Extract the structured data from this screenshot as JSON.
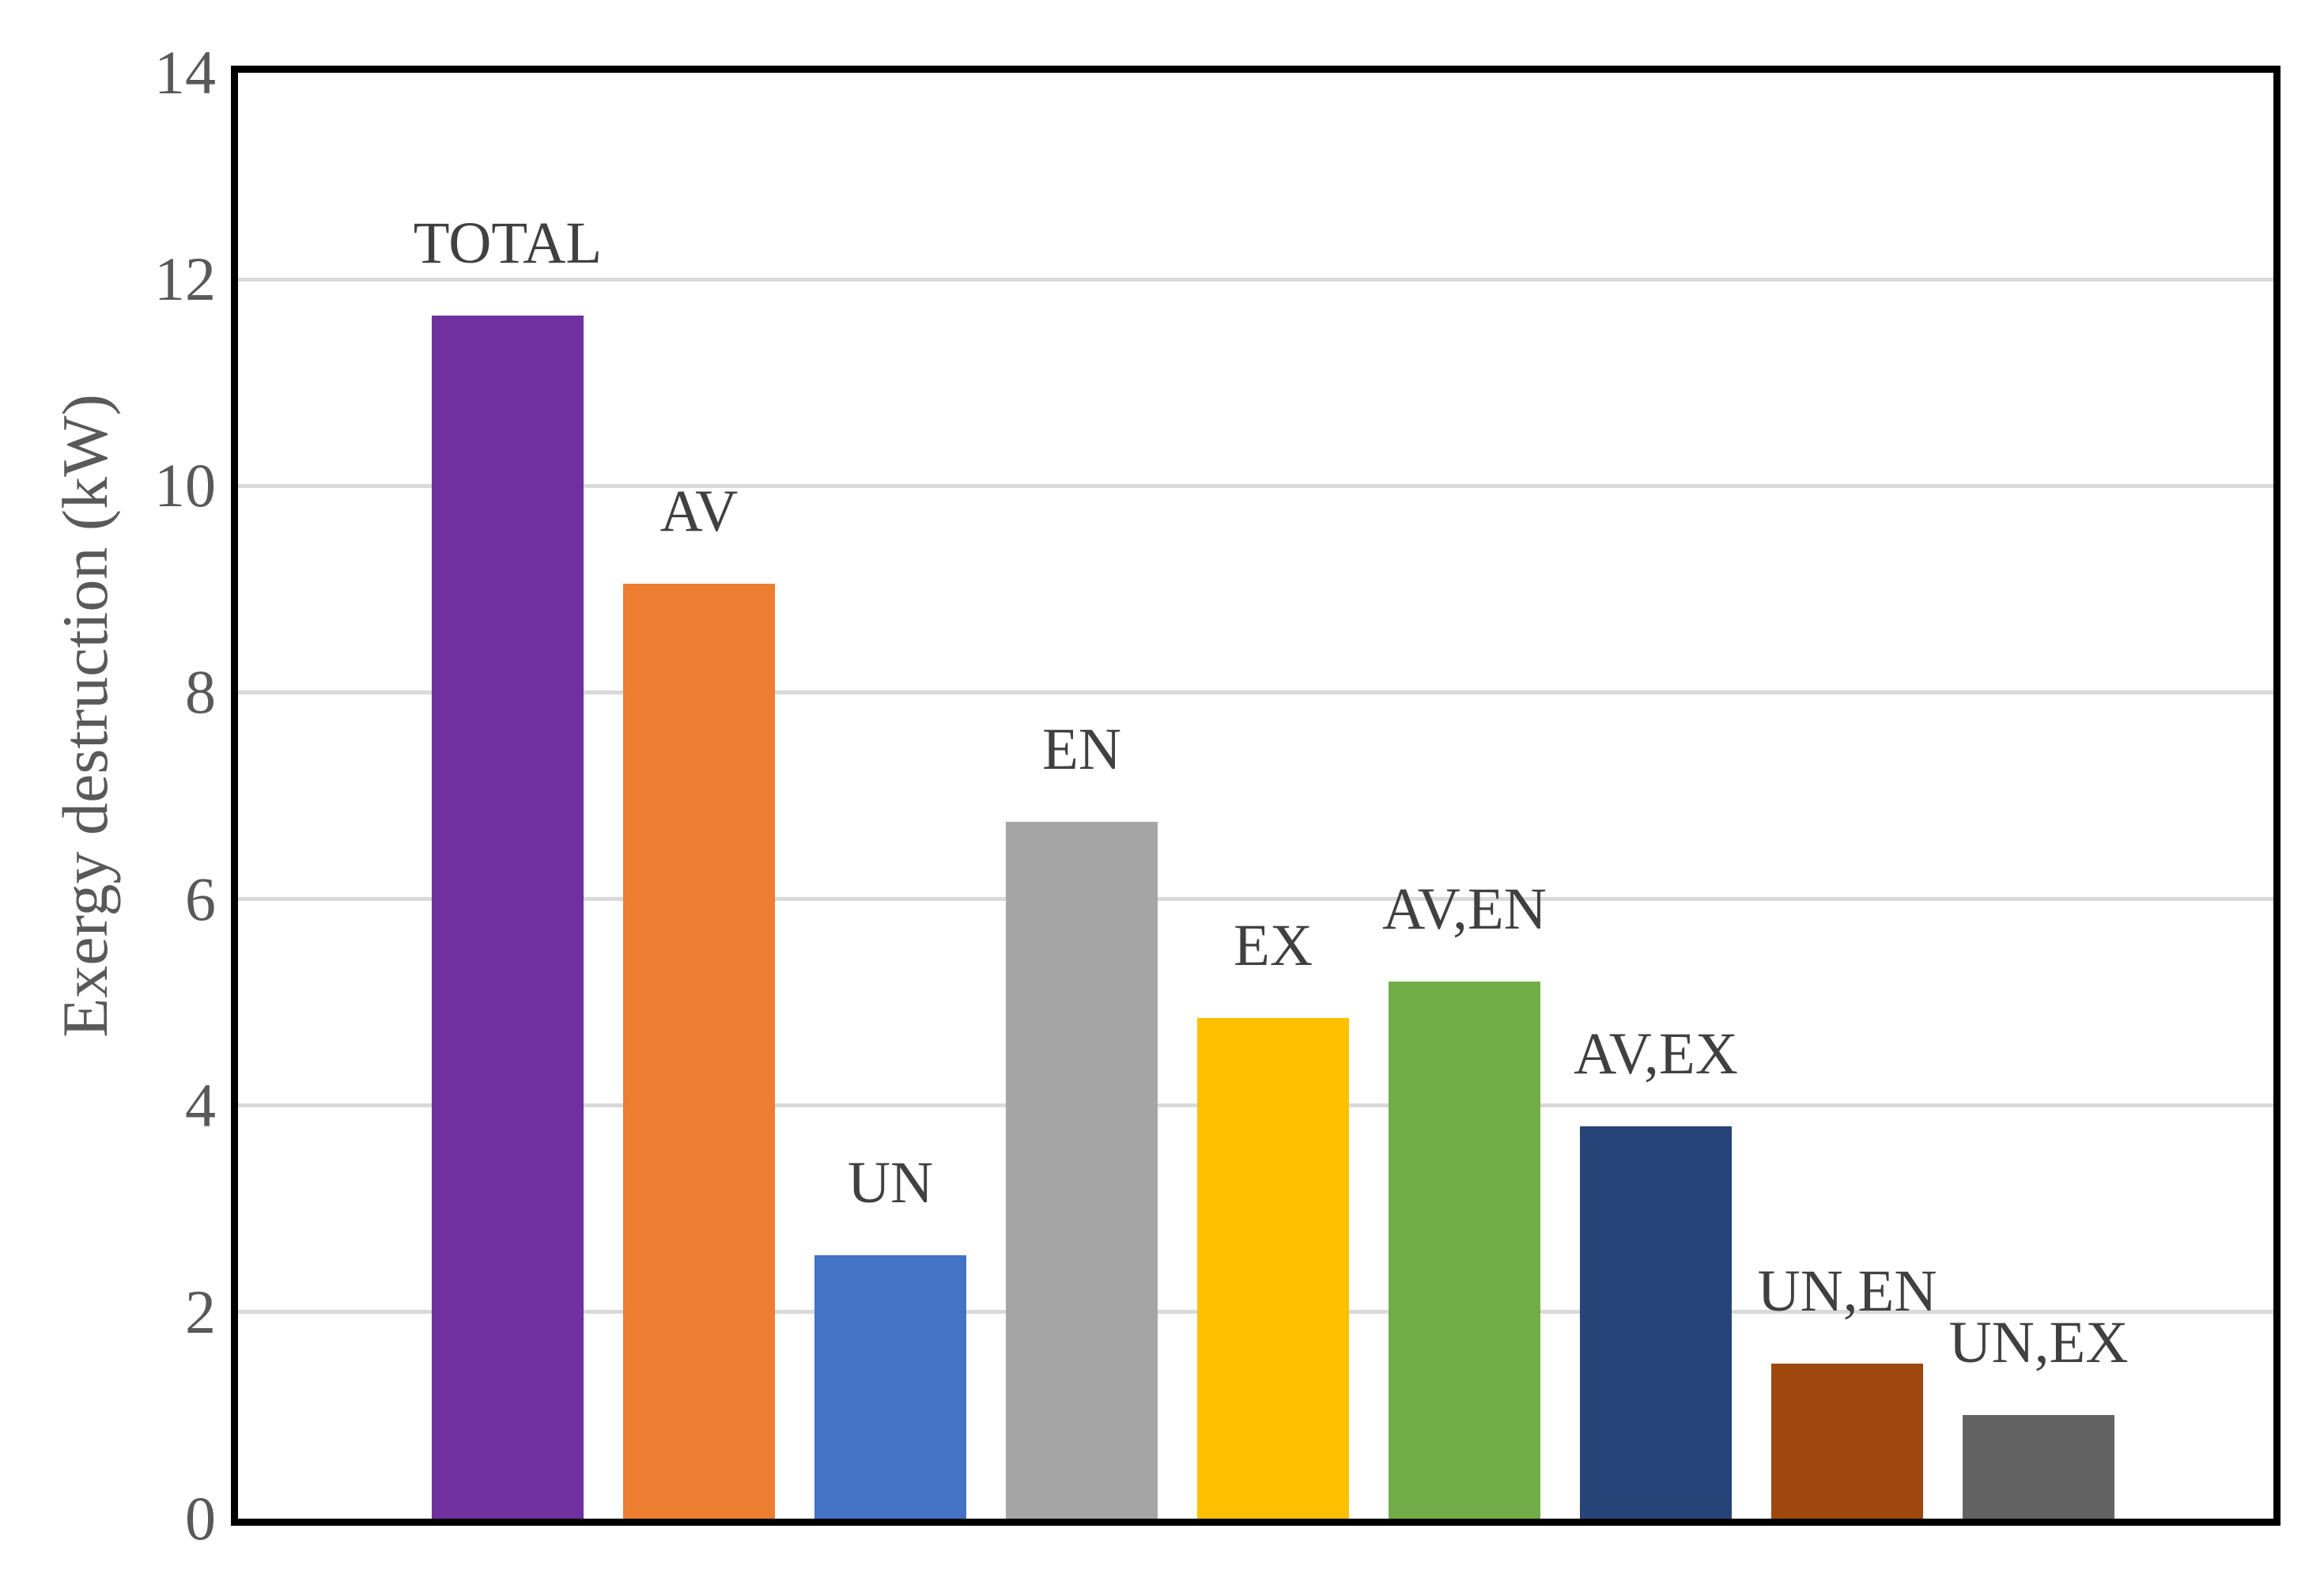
{
  "chart_data": {
    "type": "bar",
    "title": "",
    "xlabel": "",
    "ylabel": "Exergy destruction (kW)",
    "ylim": [
      0,
      14
    ],
    "yticks": [
      0,
      2,
      4,
      6,
      8,
      10,
      12,
      14
    ],
    "grid": "horizontal-gridlines-at-even-values",
    "legend_position": "none",
    "bar_label_position": "above-bar-outside-end",
    "categories": [
      "TOTAL",
      "AV",
      "UN",
      "EN",
      "EX",
      "AV,EN",
      "AV,EX",
      "UN,EN",
      "UN,EX"
    ],
    "values": [
      11.65,
      9.05,
      2.55,
      6.75,
      4.85,
      5.2,
      3.8,
      1.5,
      1.0
    ],
    "bar_colors": [
      "#7030A0",
      "#ED7D31",
      "#4472C4",
      "#A5A5A5",
      "#FFC000",
      "#70AD47",
      "#264478",
      "#9E480E",
      "#636363"
    ]
  },
  "colors": {
    "background": "#FFFFFF",
    "plot_border": "#000000",
    "gridline": "#D9D9D9",
    "tick_text": "#595959",
    "axis_title_text": "#595959",
    "bar_label_text": "#404040"
  }
}
